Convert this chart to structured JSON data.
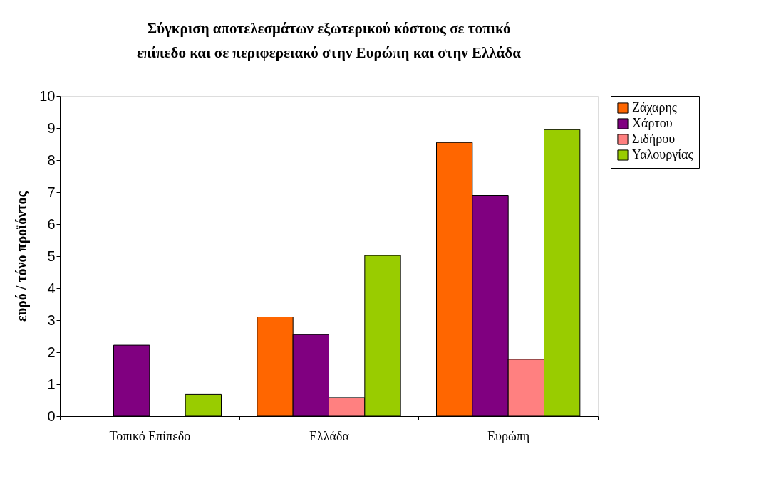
{
  "chart_data": {
    "type": "bar",
    "title": "Σύγκριση αποτελεσμάτων εξωτερικού κόστους σε τοπικό\nεπίπεδο και σε περιφερειακό στην Ευρώπη και στην Ελλάδα",
    "ylabel": "ευρό / τόνο προϊόντος",
    "categories": [
      "Τοπικό Επίπεδο",
      "Ελλάδα",
      "Ευρώπη"
    ],
    "series": [
      {
        "name": "Ζάχαρης",
        "color": "#ff6600",
        "values": [
          null,
          3.1,
          8.55
        ]
      },
      {
        "name": "Χάρτου",
        "color": "#800080",
        "values": [
          2.22,
          2.55,
          6.9
        ]
      },
      {
        "name": "Σιδήρου",
        "color": "#ff8080",
        "values": [
          null,
          0.58,
          1.78
        ]
      },
      {
        "name": "Υαλουργίας",
        "color": "#99cc00",
        "values": [
          0.68,
          5.02,
          8.95
        ]
      }
    ],
    "ylim": [
      0,
      10
    ],
    "yticks": [
      0,
      1,
      2,
      3,
      4,
      5,
      6,
      7,
      8,
      9,
      10
    ],
    "grid": false,
    "legend": "right"
  }
}
